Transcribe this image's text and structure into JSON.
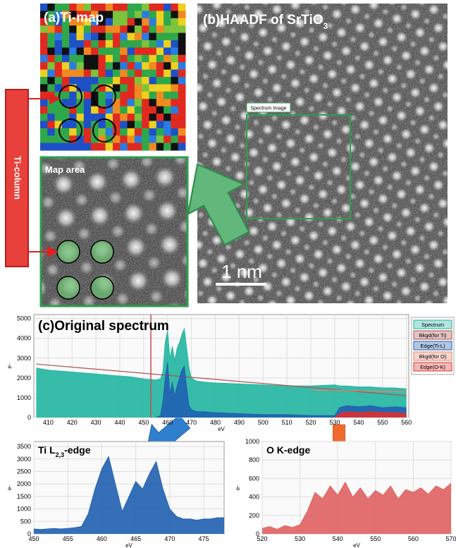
{
  "panel_a": {
    "title": "(a)Ti-map"
  },
  "panel_b": {
    "title": "(b)HAADF of SrTiO",
    "title_subscript": "3",
    "box_label": "Spectrum Image",
    "scale_bar": "1 nm"
  },
  "map_area": {
    "title": "Map area"
  },
  "ti_column": "Ti-column",
  "chart_data": [
    {
      "type": "area",
      "title": "(c)Original spectrum",
      "xlabel": "eV",
      "ylabel": "e-",
      "xlim": [
        404,
        561
      ],
      "xticks": [
        410,
        420,
        430,
        440,
        450,
        460,
        470,
        480,
        490,
        500,
        510,
        520,
        530,
        540,
        550,
        560
      ],
      "ylim": [
        0,
        5200
      ],
      "yticks": [
        0,
        1000,
        2000,
        3000,
        4000,
        5000
      ],
      "grid": true,
      "legend": "right",
      "marker": 453,
      "marker_color": "#c0504d",
      "series": [
        {
          "name": "Spectrum",
          "color": "#20b5a0",
          "fill": true,
          "x": [
            405,
            410,
            415,
            420,
            425,
            430,
            435,
            440,
            445,
            450,
            455,
            457,
            458,
            459,
            460,
            461,
            462,
            463,
            464,
            465,
            466,
            467,
            468,
            469,
            470,
            472,
            475,
            480,
            490,
            500,
            510,
            520,
            530,
            532,
            535,
            540,
            545,
            550,
            555,
            560
          ],
          "values": [
            2500,
            2400,
            2350,
            2300,
            2250,
            2200,
            2150,
            2100,
            2050,
            1950,
            1900,
            1950,
            2300,
            3800,
            4400,
            3000,
            3600,
            2900,
            3500,
            3800,
            4200,
            4500,
            3500,
            2500,
            2000,
            1850,
            1800,
            1750,
            1700,
            1650,
            1600,
            1600,
            1650,
            1600,
            1600,
            1550,
            1550,
            1500,
            1500,
            1450
          ]
        },
        {
          "name": "Bkgd(for Ti)",
          "color": "#b05050",
          "fill": false,
          "x": [
            405,
            560
          ],
          "values": [
            2700,
            1100
          ]
        },
        {
          "name": "Edge(Ti-L)",
          "color": "#1f5fb0",
          "fill": true,
          "x": [
            455,
            457,
            458,
            459,
            460,
            461,
            462,
            463,
            464,
            465,
            466,
            467,
            468,
            469,
            470,
            472,
            475,
            480,
            490,
            500,
            510,
            520,
            530,
            532,
            535,
            540,
            545,
            550,
            555,
            560
          ],
          "values": [
            0,
            100,
            800,
            2000,
            2800,
            1200,
            1800,
            1100,
            1600,
            2000,
            2400,
            2600,
            1500,
            600,
            400,
            300,
            300,
            250,
            200,
            150,
            150,
            100,
            100,
            500,
            600,
            550,
            600,
            500,
            550,
            500
          ]
        },
        {
          "name": "Bkgd(for O)",
          "color": "#e8836b",
          "fill": false,
          "x": [
            520,
            560
          ],
          "values": [
            1400,
            1300
          ]
        },
        {
          "name": "Edge(O-K)",
          "color": "#e03030",
          "fill": true,
          "x": [
            530,
            532,
            535,
            540,
            545,
            550,
            555,
            560
          ],
          "values": [
            0,
            200,
            300,
            250,
            300,
            250,
            250,
            200
          ]
        }
      ]
    },
    {
      "type": "area",
      "title": "Ti L",
      "title_subscript": "2,3",
      "title_suffix": "-edge",
      "xlabel": "eV",
      "ylabel": "e-",
      "xlim": [
        450,
        478
      ],
      "xticks": [
        450,
        455,
        460,
        465,
        470,
        475
      ],
      "ylim": [
        0,
        3700
      ],
      "yticks": [
        0,
        500,
        1000,
        1500,
        2000,
        2500,
        3000,
        3500
      ],
      "grid": true,
      "series": [
        {
          "name": "Edge(Ti-L)",
          "color": "#1f5fb0",
          "fill": true,
          "x": [
            450,
            451,
            452,
            453,
            454,
            455,
            456,
            457,
            458,
            459,
            460,
            461,
            462,
            463,
            464,
            465,
            466,
            467,
            468,
            469,
            470,
            471,
            472,
            473,
            474,
            475,
            476,
            477,
            478
          ],
          "values": [
            200,
            180,
            200,
            220,
            200,
            220,
            250,
            300,
            800,
            1800,
            2600,
            3100,
            2000,
            900,
            1500,
            2100,
            1800,
            2400,
            2900,
            1800,
            1000,
            700,
            600,
            600,
            550,
            600,
            600,
            650,
            650
          ]
        }
      ]
    },
    {
      "type": "area",
      "title": "O K-edge",
      "xlabel": "eV",
      "ylabel": "e-",
      "xlim": [
        520,
        570
      ],
      "xticks": [
        520,
        530,
        540,
        550,
        560,
        570
      ],
      "ylim": [
        0,
        1000
      ],
      "yticks": [
        0,
        200,
        400,
        600,
        800,
        1000
      ],
      "grid": true,
      "series": [
        {
          "name": "Edge(O-K)",
          "color": "#e06060",
          "fill": true,
          "x": [
            520,
            522,
            524,
            526,
            528,
            530,
            532,
            534,
            536,
            538,
            540,
            542,
            544,
            546,
            548,
            550,
            552,
            554,
            556,
            558,
            560,
            562,
            564,
            566,
            568,
            570
          ],
          "values": [
            60,
            80,
            50,
            90,
            70,
            100,
            250,
            450,
            380,
            520,
            420,
            560,
            400,
            500,
            380,
            470,
            420,
            520,
            380,
            480,
            450,
            500,
            430,
            520,
            480,
            550
          ]
        }
      ]
    }
  ]
}
